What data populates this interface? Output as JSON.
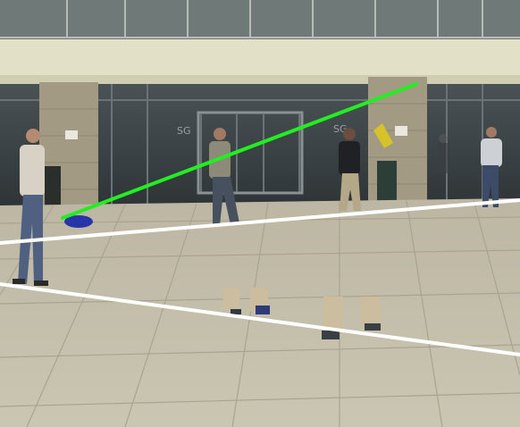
{
  "scene": {
    "kind": "surveillance-frame",
    "colors": {
      "upper_facade": "#e2e1c8",
      "glass": "#40474a",
      "pillar": "#a29a82",
      "pavement": "#c6c1ad",
      "tile_line": "#a9a38f",
      "trajectory_line": "#22ee22",
      "boundary_line": "#ffffff"
    },
    "people_count": 7,
    "left_wall_sign": "",
    "glass_sign_1": "SG",
    "glass_sign_2": "SG"
  }
}
